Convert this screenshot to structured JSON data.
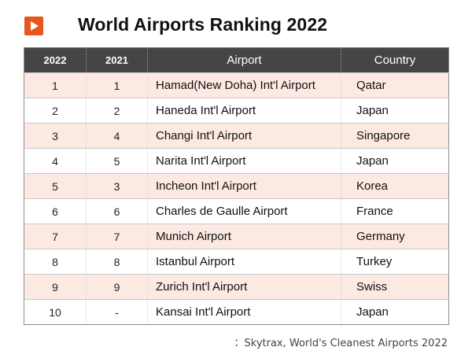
{
  "title": "World Airports Ranking 2022",
  "columns": [
    "2022",
    "2021",
    "Airport",
    "Country"
  ],
  "rows": [
    {
      "rank2022": "1",
      "rank2021": "1",
      "airport": "Hamad(New Doha) Int'l Airport",
      "country": "Qatar"
    },
    {
      "rank2022": "2",
      "rank2021": "2",
      "airport": "Haneda Int'l Airport",
      "country": "Japan"
    },
    {
      "rank2022": "3",
      "rank2021": "4",
      "airport": "Changi Int'l Airport",
      "country": "Singapore"
    },
    {
      "rank2022": "4",
      "rank2021": "5",
      "airport": "Narita Int'l Airport",
      "country": "Japan"
    },
    {
      "rank2022": "5",
      "rank2021": "3",
      "airport": "Incheon Int'l Airport",
      "country": "Korea"
    },
    {
      "rank2022": "6",
      "rank2021": "6",
      "airport": "Charles de Gaulle Airport",
      "country": "France"
    },
    {
      "rank2022": "7",
      "rank2021": "7",
      "airport": "Munich Airport",
      "country": "Germany"
    },
    {
      "rank2022": "8",
      "rank2021": "8",
      "airport": "Istanbul Airport",
      "country": "Turkey"
    },
    {
      "rank2022": "9",
      "rank2021": "9",
      "airport": "Zurich Int'l Airport",
      "country": "Swiss"
    },
    {
      "rank2022": "10",
      "rank2021": "-",
      "airport": "Kansai Int'l Airport",
      "country": "Japan"
    }
  ],
  "source": "：Skytrax, World's Cleanest Airports 2022",
  "colors": {
    "accent": "#e8561f",
    "header_bg": "#454545",
    "stripe": "#fbe9e2"
  }
}
